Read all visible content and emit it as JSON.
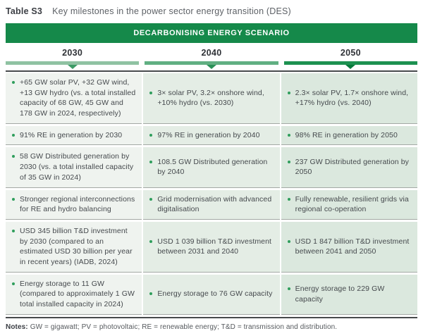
{
  "title": {
    "label": "Table S3",
    "text": "Key milestones in the power sector energy transition (DES)"
  },
  "banner": "DECARBONISING ENERGY SCENARIO",
  "columns": [
    {
      "year": "2030",
      "bar_color": "#8fc2a2",
      "arrow_color": "#3d9b66",
      "cell_bg": "#eff3ef"
    },
    {
      "year": "2040",
      "bar_color": "#61af82",
      "arrow_color": "#2a9157",
      "cell_bg": "#e4ede5"
    },
    {
      "year": "2050",
      "bar_color": "#1d9150",
      "arrow_color": "#077a3a",
      "cell_bg": "#dbe8de"
    }
  ],
  "rows": [
    {
      "cells": [
        "+65 GW solar PV, +32 GW wind, +13 GW hydro (vs. a total installed capacity of 68 GW, 45 GW and 178 GW in 2024, respectively)",
        "3× solar PV, 3.2× onshore wind, +10% hydro (vs. 2030)",
        "2.3× solar PV, 1.7× onshore wind, +17% hydro (vs. 2040)"
      ]
    },
    {
      "cells": [
        "91% RE in generation by 2030",
        "97% RE in generation by 2040",
        "98% RE in generation by 2050"
      ]
    },
    {
      "cells": [
        "58 GW Distributed generation by 2030 (vs. a total installed capacity of 35 GW in 2024)",
        "108.5 GW Distributed generation by 2040",
        "237 GW Distributed generation by 2050"
      ]
    },
    {
      "cells": [
        "Stronger regional interconnections for RE and hydro balancing",
        "Grid modernisation with advanced digitalisation",
        "Fully renewable, resilient grids via regional co-operation"
      ]
    },
    {
      "cells": [
        "USD 345 billion T&D investment by 2030 (compared to an estimated USD 30 billion per year in recent years) (IADB, 2024)",
        "USD 1 039 billion T&D investment between 2031 and 2040",
        "USD 1 847 billion T&D investment between 2041 and 2050"
      ]
    },
    {
      "cells": [
        "Energy storage to 11 GW (compared to approximately 1 GW total installed capacity in 2024)",
        "Energy storage to 76 GW capacity",
        "Energy storage to 229 GW capacity"
      ]
    }
  ],
  "notes": {
    "label": "Notes:",
    "text": "GW = gigawatt; PV = photovoltaic; RE = renewable energy; T&D = transmission and distribution."
  },
  "colors": {
    "banner_bg": "#15894a",
    "header_rule": "#474a4c",
    "bullet": "#2f9e5c",
    "body_text": "#45494d"
  }
}
